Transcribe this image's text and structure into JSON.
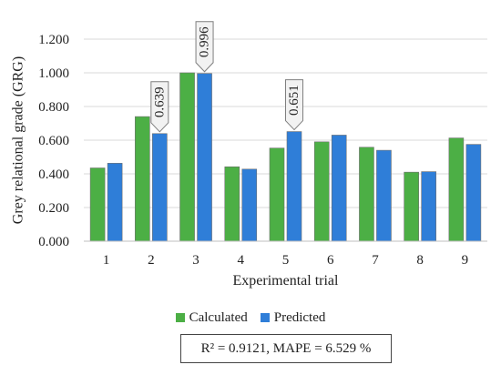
{
  "chart_data": {
    "type": "bar",
    "xlabel": "Experimental trial",
    "ylabel": "Grey relational grade (GRG)",
    "ylim": [
      0,
      1.2
    ],
    "yticks": [
      "0.000",
      "0.200",
      "0.400",
      "0.600",
      "0.800",
      "1.000",
      "1.200"
    ],
    "categories": [
      "1",
      "2",
      "3",
      "4",
      "5",
      "6",
      "7",
      "8",
      "9"
    ],
    "grid": true,
    "legend_position": "bottom",
    "series": [
      {
        "name": "Calculated",
        "color": "#4caf45",
        "values": [
          0.435,
          0.74,
          1.0,
          0.442,
          0.553,
          0.59,
          0.558,
          0.41,
          0.613
        ]
      },
      {
        "name": "Predicted",
        "color": "#2f7ed8",
        "values": [
          0.463,
          0.639,
          0.996,
          0.428,
          0.651,
          0.63,
          0.54,
          0.413,
          0.575
        ]
      }
    ],
    "annotations": [
      {
        "category": "2",
        "series": "Predicted",
        "text": "0.639"
      },
      {
        "category": "3",
        "series": "Predicted",
        "text": "0.996"
      },
      {
        "category": "5",
        "series": "Predicted",
        "text": "0.651"
      }
    ]
  },
  "stats_text": "R² = 0.9121, MAPE = 6.529 %"
}
